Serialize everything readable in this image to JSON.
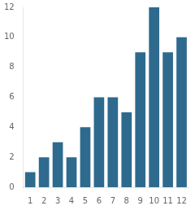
{
  "chart_data": {
    "type": "bar",
    "categories": [
      1,
      2,
      3,
      4,
      5,
      6,
      7,
      8,
      9,
      10,
      11,
      12
    ],
    "values": [
      1,
      2,
      3,
      2,
      4,
      6,
      6,
      5,
      9,
      12,
      9,
      10
    ],
    "color": "#2e6a8e",
    "ylim": [
      0,
      12
    ],
    "yticks": [
      0,
      2,
      4,
      6,
      8,
      10,
      12
    ],
    "grid": false
  }
}
